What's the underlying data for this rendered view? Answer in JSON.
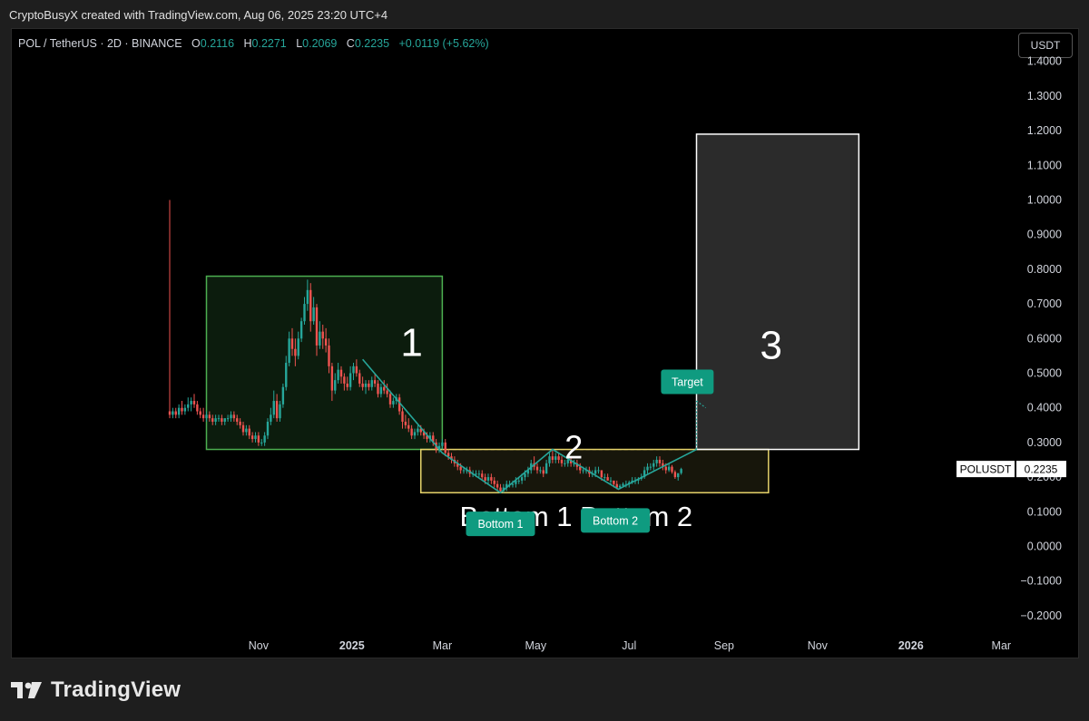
{
  "caption": "CryptoBusyX created with TradingView.com, Aug 06, 2025 23:20 UTC+4",
  "legend": {
    "symbol": "POL / TetherUS · 2D · BINANCE",
    "o_label": "O",
    "o_value": "0.2116",
    "h_label": "H",
    "h_value": "0.2271",
    "l_label": "L",
    "l_value": "0.2069",
    "c_label": "C",
    "c_value": "0.2235",
    "change": "+0.0119 (+5.62%)"
  },
  "currency_button": "USDT",
  "brand": {
    "name": "TradingView",
    "logo_icon": "tradingview-logo-icon"
  },
  "colors": {
    "up": "#26a69a",
    "down": "#ef5350",
    "zone1": "#4caf50",
    "zone2": "#e6d36a",
    "zone3": "#ffffff",
    "badge": "#0f9b80"
  },
  "chart_data": {
    "type": "candlestick",
    "symbol": "POLUSDT",
    "last_price": "0.2235",
    "price_tag_label": "POLUSDT",
    "ylim": [
      -0.23,
      1.43
    ],
    "y_ticks": [
      "1.4000",
      "1.3000",
      "1.2000",
      "1.1000",
      "1.0000",
      "0.9000",
      "0.8000",
      "0.7000",
      "0.6000",
      "0.5000",
      "0.4000",
      "0.3000",
      "0.2000",
      "0.1000",
      "0.0000",
      "−0.1000",
      "−0.2000"
    ],
    "y_tick_values": [
      1.4,
      1.3,
      1.2,
      1.1,
      1.0,
      0.9,
      0.8,
      0.7,
      0.6,
      0.5,
      0.4,
      0.3,
      0.2,
      0.1,
      0.0,
      -0.1,
      -0.2
    ],
    "x_ticks": [
      {
        "label": "Nov",
        "date": "2024-11-01",
        "bold": false
      },
      {
        "label": "2025",
        "date": "2025-01-01",
        "bold": true
      },
      {
        "label": "Mar",
        "date": "2025-03-01",
        "bold": false
      },
      {
        "label": "May",
        "date": "2025-05-01",
        "bold": false
      },
      {
        "label": "Jul",
        "date": "2025-07-01",
        "bold": false
      },
      {
        "label": "Sep",
        "date": "2025-09-01",
        "bold": false
      },
      {
        "label": "Nov",
        "date": "2025-11-01",
        "bold": false
      },
      {
        "label": "2026",
        "date": "2026-01-01",
        "bold": true
      },
      {
        "label": "Mar",
        "date": "2026-03-01",
        "bold": false
      }
    ],
    "x_start": "2024-09-04",
    "candles": [
      [
        "2024-09-04",
        0.39,
        1.0,
        0.37,
        0.38
      ],
      [
        "2024-09-06",
        0.38,
        0.4,
        0.37,
        0.39
      ],
      [
        "2024-09-08",
        0.39,
        0.4,
        0.37,
        0.38
      ],
      [
        "2024-09-10",
        0.38,
        0.41,
        0.37,
        0.4
      ],
      [
        "2024-09-12",
        0.4,
        0.42,
        0.38,
        0.39
      ],
      [
        "2024-09-14",
        0.39,
        0.41,
        0.38,
        0.4
      ],
      [
        "2024-09-16",
        0.4,
        0.43,
        0.39,
        0.41
      ],
      [
        "2024-09-18",
        0.41,
        0.43,
        0.39,
        0.42
      ],
      [
        "2024-09-20",
        0.42,
        0.44,
        0.4,
        0.41
      ],
      [
        "2024-09-22",
        0.41,
        0.42,
        0.38,
        0.39
      ],
      [
        "2024-09-24",
        0.39,
        0.4,
        0.37,
        0.38
      ],
      [
        "2024-09-26",
        0.38,
        0.4,
        0.36,
        0.37
      ],
      [
        "2024-09-28",
        0.37,
        0.39,
        0.36,
        0.38
      ],
      [
        "2024-09-30",
        0.38,
        0.39,
        0.36,
        0.37
      ],
      [
        "2024-10-02",
        0.37,
        0.38,
        0.35,
        0.36
      ],
      [
        "2024-10-04",
        0.36,
        0.38,
        0.35,
        0.37
      ],
      [
        "2024-10-06",
        0.37,
        0.38,
        0.36,
        0.37
      ],
      [
        "2024-10-08",
        0.37,
        0.38,
        0.35,
        0.36
      ],
      [
        "2024-10-10",
        0.36,
        0.37,
        0.35,
        0.37
      ],
      [
        "2024-10-12",
        0.37,
        0.38,
        0.36,
        0.37
      ],
      [
        "2024-10-14",
        0.37,
        0.39,
        0.36,
        0.38
      ],
      [
        "2024-10-16",
        0.38,
        0.39,
        0.36,
        0.37
      ],
      [
        "2024-10-18",
        0.37,
        0.38,
        0.35,
        0.36
      ],
      [
        "2024-10-20",
        0.36,
        0.37,
        0.34,
        0.35
      ],
      [
        "2024-10-22",
        0.35,
        0.36,
        0.32,
        0.33
      ],
      [
        "2024-10-24",
        0.33,
        0.35,
        0.32,
        0.34
      ],
      [
        "2024-10-26",
        0.34,
        0.35,
        0.31,
        0.32
      ],
      [
        "2024-10-28",
        0.32,
        0.33,
        0.3,
        0.31
      ],
      [
        "2024-10-30",
        0.31,
        0.33,
        0.3,
        0.32
      ],
      [
        "2024-11-01",
        0.32,
        0.33,
        0.29,
        0.3
      ],
      [
        "2024-11-03",
        0.3,
        0.31,
        0.29,
        0.3
      ],
      [
        "2024-11-05",
        0.3,
        0.33,
        0.29,
        0.32
      ],
      [
        "2024-11-07",
        0.32,
        0.37,
        0.31,
        0.36
      ],
      [
        "2024-11-09",
        0.36,
        0.4,
        0.35,
        0.38
      ],
      [
        "2024-11-11",
        0.38,
        0.45,
        0.37,
        0.42
      ],
      [
        "2024-11-13",
        0.42,
        0.44,
        0.36,
        0.37
      ],
      [
        "2024-11-15",
        0.37,
        0.42,
        0.36,
        0.41
      ],
      [
        "2024-11-17",
        0.41,
        0.47,
        0.4,
        0.46
      ],
      [
        "2024-11-19",
        0.46,
        0.55,
        0.45,
        0.53
      ],
      [
        "2024-11-21",
        0.53,
        0.62,
        0.52,
        0.6
      ],
      [
        "2024-11-23",
        0.6,
        0.63,
        0.55,
        0.57
      ],
      [
        "2024-11-25",
        0.57,
        0.6,
        0.52,
        0.55
      ],
      [
        "2024-11-27",
        0.55,
        0.62,
        0.54,
        0.6
      ],
      [
        "2024-11-29",
        0.6,
        0.66,
        0.59,
        0.65
      ],
      [
        "2024-12-01",
        0.65,
        0.72,
        0.64,
        0.7
      ],
      [
        "2024-12-03",
        0.7,
        0.77,
        0.68,
        0.74
      ],
      [
        "2024-12-05",
        0.74,
        0.76,
        0.62,
        0.65
      ],
      [
        "2024-12-07",
        0.65,
        0.72,
        0.64,
        0.69
      ],
      [
        "2024-12-09",
        0.69,
        0.7,
        0.55,
        0.58
      ],
      [
        "2024-12-11",
        0.58,
        0.65,
        0.57,
        0.62
      ],
      [
        "2024-12-13",
        0.62,
        0.64,
        0.57,
        0.6
      ],
      [
        "2024-12-15",
        0.6,
        0.63,
        0.56,
        0.58
      ],
      [
        "2024-12-17",
        0.58,
        0.6,
        0.5,
        0.52
      ],
      [
        "2024-12-19",
        0.52,
        0.53,
        0.42,
        0.45
      ],
      [
        "2024-12-21",
        0.45,
        0.5,
        0.44,
        0.48
      ],
      [
        "2024-12-23",
        0.48,
        0.53,
        0.47,
        0.51
      ],
      [
        "2024-12-25",
        0.51,
        0.52,
        0.47,
        0.49
      ],
      [
        "2024-12-27",
        0.49,
        0.5,
        0.45,
        0.47
      ],
      [
        "2024-12-29",
        0.47,
        0.49,
        0.45,
        0.46
      ],
      [
        "2024-12-31",
        0.46,
        0.52,
        0.45,
        0.5
      ],
      [
        "2025-01-02",
        0.5,
        0.53,
        0.48,
        0.52
      ],
      [
        "2025-01-04",
        0.52,
        0.54,
        0.49,
        0.5
      ],
      [
        "2025-01-06",
        0.5,
        0.51,
        0.46,
        0.47
      ],
      [
        "2025-01-08",
        0.47,
        0.49,
        0.45,
        0.46
      ],
      [
        "2025-01-10",
        0.46,
        0.48,
        0.44,
        0.47
      ],
      [
        "2025-01-12",
        0.47,
        0.48,
        0.45,
        0.46
      ],
      [
        "2025-01-14",
        0.46,
        0.49,
        0.45,
        0.48
      ],
      [
        "2025-01-16",
        0.48,
        0.5,
        0.46,
        0.47
      ],
      [
        "2025-01-18",
        0.47,
        0.48,
        0.43,
        0.44
      ],
      [
        "2025-01-20",
        0.44,
        0.47,
        0.43,
        0.46
      ],
      [
        "2025-01-22",
        0.46,
        0.48,
        0.44,
        0.45
      ],
      [
        "2025-01-24",
        0.45,
        0.47,
        0.43,
        0.44
      ],
      [
        "2025-01-26",
        0.44,
        0.45,
        0.4,
        0.41
      ],
      [
        "2025-01-28",
        0.41,
        0.43,
        0.4,
        0.42
      ],
      [
        "2025-01-30",
        0.42,
        0.44,
        0.41,
        0.43
      ],
      [
        "2025-02-01",
        0.43,
        0.44,
        0.38,
        0.39
      ],
      [
        "2025-02-03",
        0.39,
        0.4,
        0.34,
        0.36
      ],
      [
        "2025-02-05",
        0.36,
        0.38,
        0.34,
        0.35
      ],
      [
        "2025-02-07",
        0.35,
        0.37,
        0.33,
        0.34
      ],
      [
        "2025-02-09",
        0.34,
        0.35,
        0.31,
        0.32
      ],
      [
        "2025-02-11",
        0.32,
        0.34,
        0.31,
        0.33
      ],
      [
        "2025-02-13",
        0.33,
        0.35,
        0.32,
        0.34
      ],
      [
        "2025-02-15",
        0.34,
        0.35,
        0.32,
        0.33
      ],
      [
        "2025-02-17",
        0.33,
        0.34,
        0.31,
        0.32
      ],
      [
        "2025-02-19",
        0.32,
        0.33,
        0.3,
        0.31
      ],
      [
        "2025-02-21",
        0.31,
        0.33,
        0.3,
        0.32
      ],
      [
        "2025-02-23",
        0.32,
        0.33,
        0.29,
        0.3
      ],
      [
        "2025-02-25",
        0.3,
        0.31,
        0.27,
        0.28
      ],
      [
        "2025-02-27",
        0.28,
        0.3,
        0.27,
        0.29
      ],
      [
        "2025-03-01",
        0.29,
        0.31,
        0.28,
        0.3
      ],
      [
        "2025-03-03",
        0.3,
        0.31,
        0.26,
        0.27
      ],
      [
        "2025-03-05",
        0.27,
        0.28,
        0.25,
        0.26
      ],
      [
        "2025-03-07",
        0.26,
        0.27,
        0.24,
        0.25
      ],
      [
        "2025-03-09",
        0.25,
        0.26,
        0.23,
        0.24
      ],
      [
        "2025-03-11",
        0.24,
        0.25,
        0.22,
        0.23
      ],
      [
        "2025-03-13",
        0.23,
        0.24,
        0.21,
        0.22
      ],
      [
        "2025-03-15",
        0.22,
        0.23,
        0.21,
        0.22
      ],
      [
        "2025-03-17",
        0.22,
        0.23,
        0.21,
        0.22
      ],
      [
        "2025-03-19",
        0.22,
        0.23,
        0.2,
        0.21
      ],
      [
        "2025-03-21",
        0.21,
        0.22,
        0.2,
        0.21
      ],
      [
        "2025-03-23",
        0.21,
        0.22,
        0.2,
        0.21
      ],
      [
        "2025-03-25",
        0.21,
        0.22,
        0.2,
        0.21
      ],
      [
        "2025-03-27",
        0.21,
        0.22,
        0.19,
        0.2
      ],
      [
        "2025-03-29",
        0.2,
        0.21,
        0.18,
        0.19
      ],
      [
        "2025-03-31",
        0.19,
        0.21,
        0.18,
        0.2
      ],
      [
        "2025-04-02",
        0.2,
        0.21,
        0.18,
        0.19
      ],
      [
        "2025-04-04",
        0.19,
        0.2,
        0.17,
        0.18
      ],
      [
        "2025-04-06",
        0.18,
        0.19,
        0.16,
        0.17
      ],
      [
        "2025-04-08",
        0.17,
        0.18,
        0.155,
        0.16
      ],
      [
        "2025-04-10",
        0.16,
        0.18,
        0.155,
        0.17
      ],
      [
        "2025-04-12",
        0.17,
        0.19,
        0.16,
        0.18
      ],
      [
        "2025-04-14",
        0.18,
        0.19,
        0.17,
        0.18
      ],
      [
        "2025-04-16",
        0.18,
        0.19,
        0.17,
        0.18
      ],
      [
        "2025-04-18",
        0.18,
        0.2,
        0.17,
        0.19
      ],
      [
        "2025-04-20",
        0.19,
        0.2,
        0.18,
        0.19
      ],
      [
        "2025-04-22",
        0.19,
        0.21,
        0.18,
        0.2
      ],
      [
        "2025-04-24",
        0.2,
        0.22,
        0.19,
        0.21
      ],
      [
        "2025-04-26",
        0.21,
        0.23,
        0.2,
        0.22
      ],
      [
        "2025-04-28",
        0.22,
        0.25,
        0.21,
        0.24
      ],
      [
        "2025-04-30",
        0.24,
        0.26,
        0.22,
        0.23
      ],
      [
        "2025-05-02",
        0.23,
        0.24,
        0.21,
        0.22
      ],
      [
        "2025-05-04",
        0.22,
        0.23,
        0.21,
        0.22
      ],
      [
        "2025-05-06",
        0.22,
        0.23,
        0.2,
        0.21
      ],
      [
        "2025-05-08",
        0.21,
        0.25,
        0.21,
        0.24
      ],
      [
        "2025-05-10",
        0.24,
        0.27,
        0.23,
        0.26
      ],
      [
        "2025-05-12",
        0.26,
        0.28,
        0.24,
        0.25
      ],
      [
        "2025-05-14",
        0.25,
        0.27,
        0.24,
        0.26
      ],
      [
        "2025-05-16",
        0.26,
        0.27,
        0.24,
        0.25
      ],
      [
        "2025-05-18",
        0.25,
        0.26,
        0.23,
        0.24
      ],
      [
        "2025-05-20",
        0.24,
        0.25,
        0.23,
        0.24
      ],
      [
        "2025-05-22",
        0.24,
        0.26,
        0.23,
        0.25
      ],
      [
        "2025-05-24",
        0.25,
        0.26,
        0.23,
        0.24
      ],
      [
        "2025-05-26",
        0.24,
        0.25,
        0.23,
        0.24
      ],
      [
        "2025-05-28",
        0.24,
        0.25,
        0.22,
        0.23
      ],
      [
        "2025-05-30",
        0.23,
        0.24,
        0.21,
        0.22
      ],
      [
        "2025-06-01",
        0.22,
        0.23,
        0.21,
        0.22
      ],
      [
        "2025-06-03",
        0.22,
        0.23,
        0.21,
        0.22
      ],
      [
        "2025-06-05",
        0.22,
        0.23,
        0.2,
        0.21
      ],
      [
        "2025-06-07",
        0.21,
        0.22,
        0.2,
        0.21
      ],
      [
        "2025-06-09",
        0.21,
        0.23,
        0.2,
        0.22
      ],
      [
        "2025-06-11",
        0.22,
        0.23,
        0.21,
        0.22
      ],
      [
        "2025-06-13",
        0.22,
        0.22,
        0.19,
        0.2
      ],
      [
        "2025-06-15",
        0.2,
        0.21,
        0.19,
        0.2
      ],
      [
        "2025-06-17",
        0.2,
        0.21,
        0.19,
        0.19
      ],
      [
        "2025-06-19",
        0.19,
        0.2,
        0.18,
        0.19
      ],
      [
        "2025-06-21",
        0.19,
        0.19,
        0.17,
        0.18
      ],
      [
        "2025-06-23",
        0.18,
        0.19,
        0.165,
        0.17
      ],
      [
        "2025-06-25",
        0.17,
        0.18,
        0.165,
        0.175
      ],
      [
        "2025-06-27",
        0.175,
        0.185,
        0.17,
        0.18
      ],
      [
        "2025-06-29",
        0.18,
        0.19,
        0.17,
        0.18
      ],
      [
        "2025-07-01",
        0.18,
        0.19,
        0.17,
        0.185
      ],
      [
        "2025-07-03",
        0.185,
        0.2,
        0.18,
        0.19
      ],
      [
        "2025-07-05",
        0.19,
        0.2,
        0.18,
        0.19
      ],
      [
        "2025-07-07",
        0.19,
        0.2,
        0.18,
        0.195
      ],
      [
        "2025-07-09",
        0.195,
        0.21,
        0.19,
        0.2
      ],
      [
        "2025-07-11",
        0.2,
        0.23,
        0.195,
        0.22
      ],
      [
        "2025-07-13",
        0.22,
        0.24,
        0.21,
        0.23
      ],
      [
        "2025-07-15",
        0.23,
        0.24,
        0.22,
        0.23
      ],
      [
        "2025-07-17",
        0.23,
        0.25,
        0.22,
        0.24
      ],
      [
        "2025-07-19",
        0.24,
        0.26,
        0.23,
        0.25
      ],
      [
        "2025-07-21",
        0.25,
        0.26,
        0.23,
        0.24
      ],
      [
        "2025-07-23",
        0.24,
        0.25,
        0.22,
        0.23
      ],
      [
        "2025-07-25",
        0.23,
        0.24,
        0.21,
        0.22
      ],
      [
        "2025-07-27",
        0.22,
        0.24,
        0.215,
        0.23
      ],
      [
        "2025-07-29",
        0.23,
        0.235,
        0.21,
        0.215
      ],
      [
        "2025-07-31",
        0.215,
        0.22,
        0.195,
        0.2
      ],
      [
        "2025-08-02",
        0.2,
        0.21,
        0.19,
        0.2116
      ],
      [
        "2025-08-04",
        0.2116,
        0.2271,
        0.2069,
        0.2235
      ]
    ],
    "zones": [
      {
        "label": "1",
        "x0": "2024-09-28",
        "x1": "2025-03-01",
        "y0": 0.28,
        "y1": 0.78,
        "color": "#4caf50",
        "fill": "rgba(76,175,80,0.16)"
      },
      {
        "label": "2",
        "x0": "2025-02-15",
        "x1": "2025-09-30",
        "y0": 0.155,
        "y1": 0.28,
        "color": "#e6d36a",
        "fill": "rgba(230,211,106,0.10)"
      },
      {
        "label": "3",
        "x0": "2025-08-14",
        "x1": "2025-11-28",
        "y0": 0.28,
        "y1": 1.19,
        "color": "#ffffff",
        "fill": "rgba(255,255,255,0.17)"
      }
    ],
    "zone2_top_dashed": 0.28,
    "trendline": [
      [
        "2025-01-08",
        0.54
      ],
      [
        "2025-03-01",
        0.27
      ],
      [
        "2025-04-08",
        0.155
      ],
      [
        "2025-05-12",
        0.28
      ],
      [
        "2025-06-24",
        0.165
      ],
      [
        "2025-08-14",
        0.28
      ]
    ],
    "target_arrow": [
      [
        "2025-08-14",
        0.28
      ],
      [
        "2025-08-14",
        0.42
      ],
      [
        "2025-08-20",
        0.4
      ]
    ],
    "badges": [
      {
        "text": "Target",
        "date": "2025-08-08",
        "price": 0.475
      },
      {
        "text": "Bottom 1",
        "date": "2025-04-08",
        "price": 0.065
      },
      {
        "text": "Bottom 2",
        "date": "2025-06-22",
        "price": 0.075
      }
    ],
    "bottom_labels_text": "Bottom 1 Bottom 2",
    "bottom_labels_anchor": {
      "date": "2025-04-05",
      "price": 0.085
    }
  }
}
